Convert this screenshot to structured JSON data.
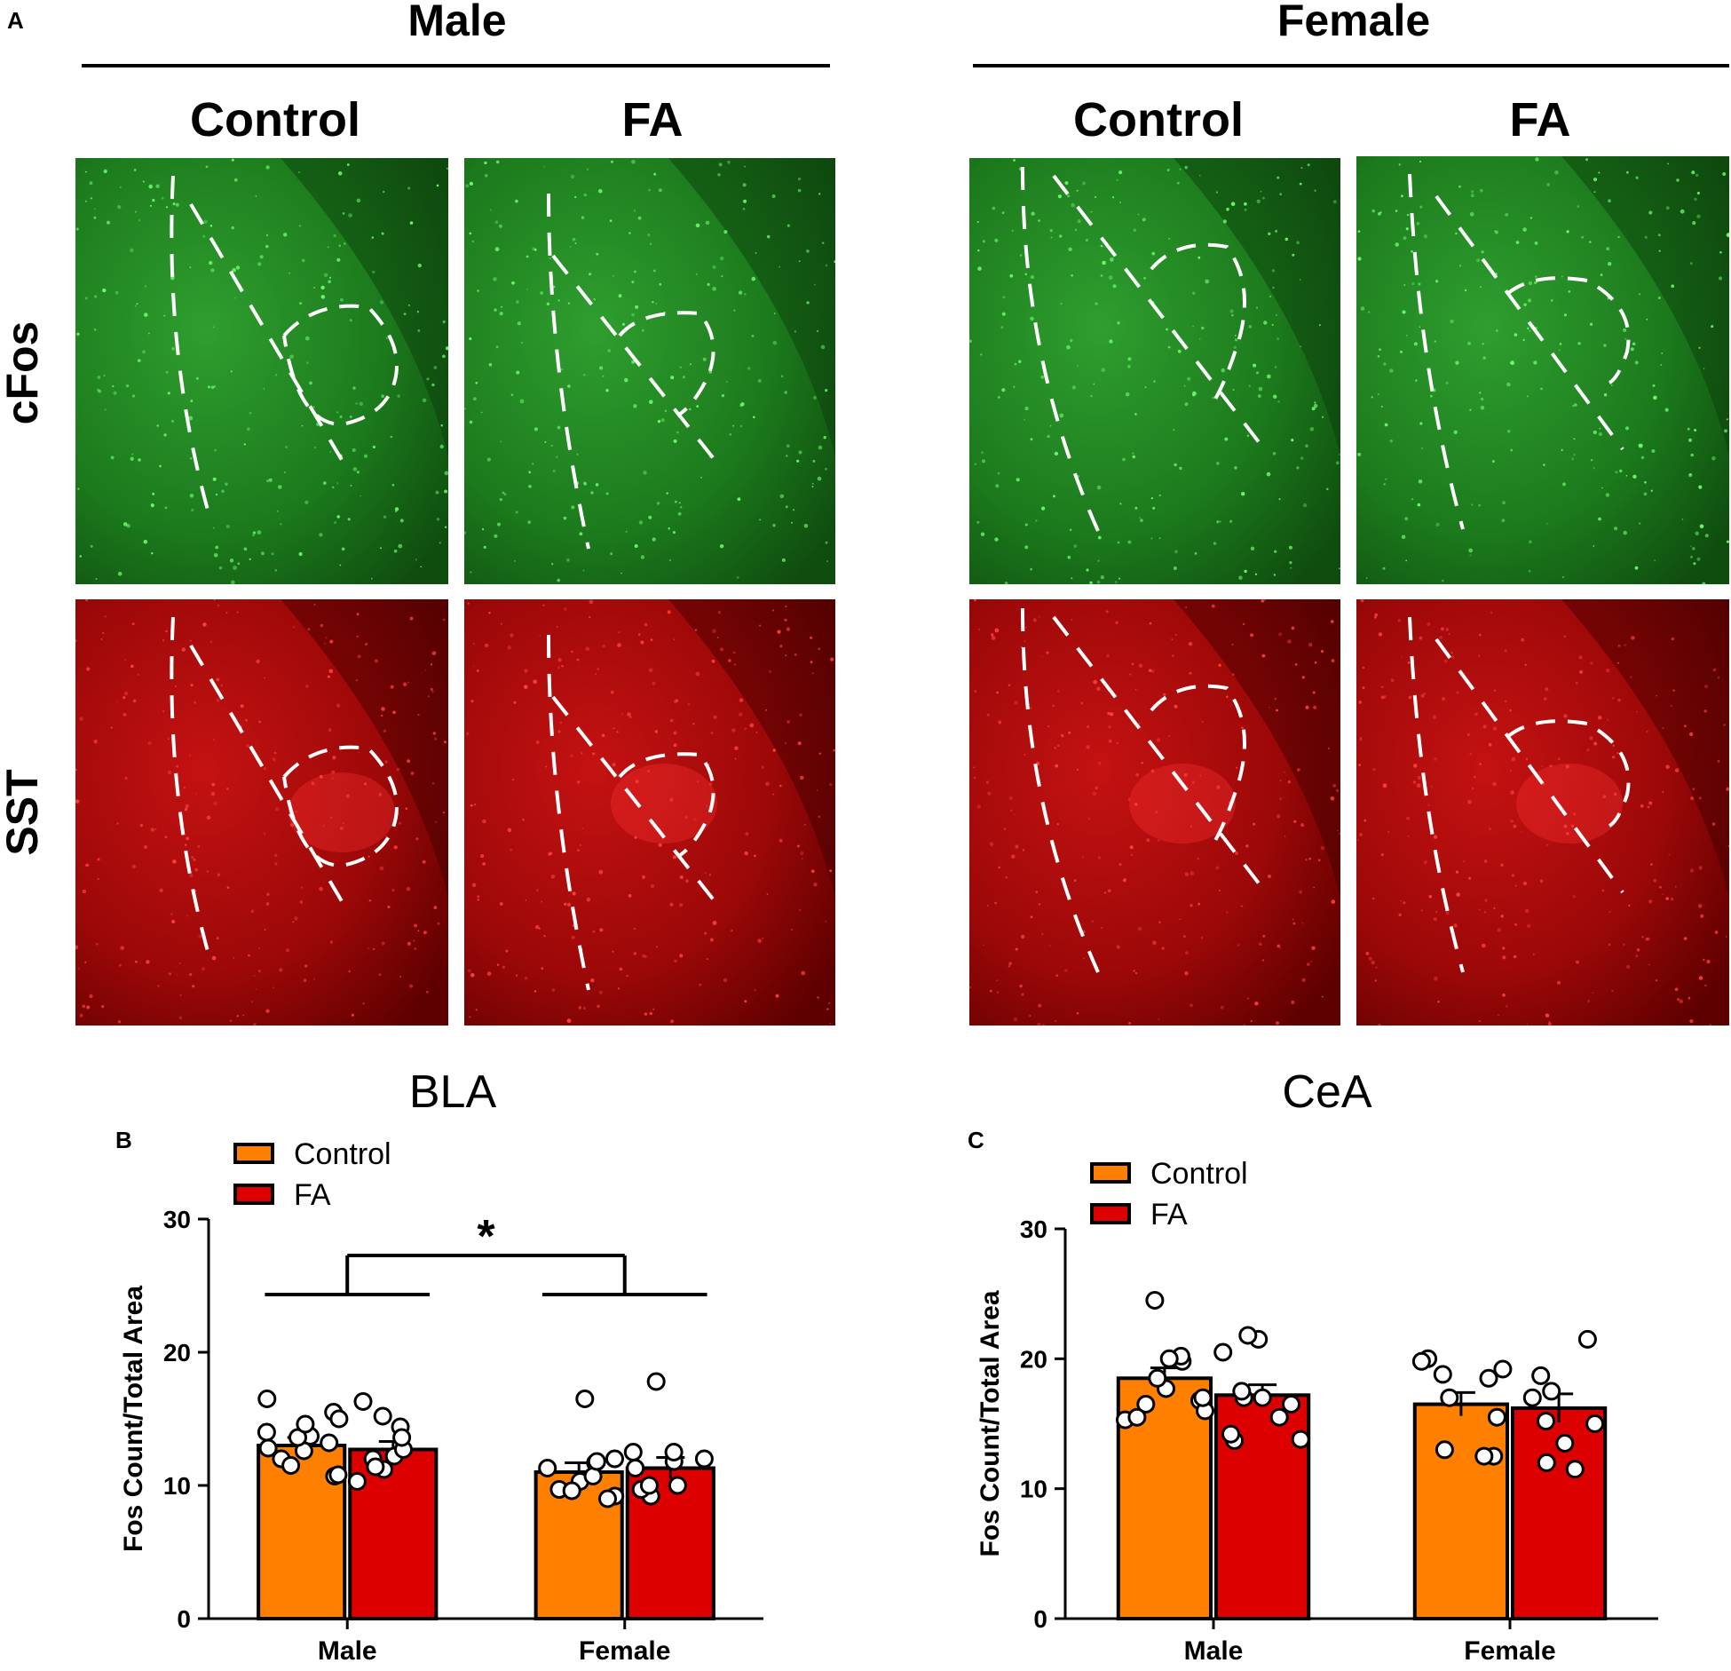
{
  "figure": {
    "panel_a_letter": "A",
    "sex_titles": [
      "Male",
      "Female"
    ],
    "condition_titles": [
      "Control",
      "FA",
      "Control",
      "FA"
    ],
    "row_labels": [
      "cFos",
      "SST"
    ],
    "colors": {
      "green_stain": "#1f8a1f",
      "red_stain": "#b80d0d",
      "control_bar": "#ff8000",
      "fa_bar": "#dd0000"
    }
  },
  "chart_data": [
    {
      "type": "bar",
      "panel_letter": "B",
      "title": "BLA",
      "categories": [
        "Male",
        "Female"
      ],
      "ylabel": "Fos Count/Total Area",
      "xlabel": "",
      "ylim": [
        0,
        30
      ],
      "yticks": [
        0,
        10,
        20,
        30
      ],
      "series": [
        {
          "name": "Control",
          "color": "#ff8000",
          "values": [
            13.0,
            11.0
          ],
          "sem": [
            0.6,
            0.7
          ],
          "points": [
            [
              12.0,
              15.5,
              13.7,
              10.7,
              14.0,
              13.2,
              11.5,
              16.5,
              12.8,
              15.0,
              10.8,
              12.6,
              13.6,
              14.6
            ],
            [
              9.7,
              11.3,
              10.3,
              9.6,
              11.7,
              16.5,
              9.2,
              12.0,
              10.7,
              11.8,
              9.0
            ]
          ]
        },
        {
          "name": "FA",
          "color": "#dd0000",
          "values": [
            12.7,
            11.3
          ],
          "sem": [
            0.6,
            0.8
          ],
          "points": [
            [
              12.0,
              15.2,
              10.3,
              16.3,
              11.2,
              14.4,
              12.2,
              12.7,
              13.6,
              11.4
            ],
            [
              9.2,
              11.8,
              12.0,
              10.0,
              11.3,
              17.8,
              9.7,
              12.5,
              10.0,
              12.5
            ]
          ]
        }
      ],
      "significance": {
        "label": "*",
        "comparison": "Male vs Female"
      }
    },
    {
      "type": "bar",
      "panel_letter": "C",
      "title": "CeA",
      "categories": [
        "Male",
        "Female"
      ],
      "ylabel": "Fos Count/Total Area",
      "xlabel": "",
      "ylim": [
        0,
        30
      ],
      "yticks": [
        0,
        10,
        20,
        30
      ],
      "series": [
        {
          "name": "Control",
          "color": "#ff8000",
          "values": [
            18.5,
            16.5
          ],
          "sem": [
            0.8,
            0.9
          ],
          "points": [
            [
              16.5,
              19.8,
              15.3,
              17.7,
              20.2,
              24.5,
              15.5,
              16.8,
              18.5,
              20.0,
              16.0,
              17.0
            ],
            [
              18.8,
              12.5,
              15.5,
              19.2,
              17.0,
              20.0,
              12.5,
              18.5,
              19.8,
              13.0
            ]
          ]
        },
        {
          "name": "FA",
          "color": "#dd0000",
          "values": [
            17.2,
            16.2
          ],
          "sem": [
            0.8,
            1.1
          ],
          "points": [
            [
              17.0,
              13.7,
              21.5,
              15.5,
              20.5,
              14.2,
              21.8,
              17.0,
              13.8,
              16.5,
              17.5
            ],
            [
              18.7,
              15.2,
              12.0,
              17.0,
              11.5,
              21.5,
              15.0,
              17.5,
              13.5
            ]
          ]
        }
      ],
      "significance": null
    }
  ]
}
